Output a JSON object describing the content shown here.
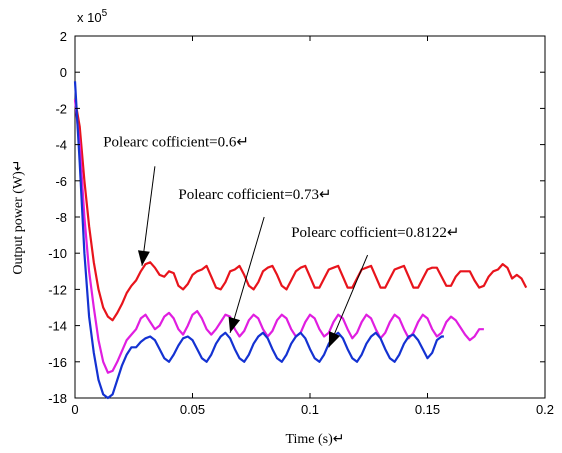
{
  "chart_data": {
    "type": "line",
    "xlabel": "Time (s)↵",
    "ylabel": "Output power (W)↵",
    "exponent_label": "x 10",
    "exponent_power": "5",
    "xlim": [
      0,
      0.2
    ],
    "ylim": [
      -18,
      2
    ],
    "xticks": [
      0,
      0.05,
      0.1,
      0.15,
      0.2
    ],
    "xtick_labels": [
      "0",
      "0.05",
      "0.1",
      "0.15",
      "0.2"
    ],
    "yticks": [
      2,
      0,
      -2,
      -4,
      -6,
      -8,
      -10,
      -12,
      -14,
      -16,
      -18
    ],
    "ytick_labels": [
      "2",
      "0",
      "-2",
      "-4",
      "-6",
      "-8",
      "-10",
      "-12",
      "-14",
      "-16",
      "-18"
    ],
    "grid": false,
    "series": [
      {
        "color": "#e8141c",
        "x_end": 0.192,
        "points": [
          [
            0,
            -1.5
          ],
          [
            0.002,
            -3
          ],
          [
            0.004,
            -6
          ],
          [
            0.006,
            -8.5
          ],
          [
            0.008,
            -10.5
          ],
          [
            0.01,
            -12.0
          ],
          [
            0.012,
            -13.0
          ],
          [
            0.014,
            -13.5
          ],
          [
            0.016,
            -13.7
          ],
          [
            0.018,
            -13.3
          ],
          [
            0.02,
            -12.8
          ],
          [
            0.022,
            -12.2
          ],
          [
            0.024,
            -11.8
          ],
          [
            0.026,
            -11.5
          ],
          [
            0.028,
            -11.0
          ],
          [
            0.03,
            -10.6
          ],
          [
            0.032,
            -10.5
          ],
          [
            0.034,
            -10.8
          ],
          [
            0.036,
            -11.2
          ],
          [
            0.038,
            -11.3
          ],
          [
            0.04,
            -11.0
          ],
          [
            0.042,
            -11.1
          ],
          [
            0.044,
            -11.8
          ],
          [
            0.046,
            -12.0
          ],
          [
            0.048,
            -11.7
          ],
          [
            0.05,
            -11.2
          ],
          [
            0.052,
            -11.0
          ],
          [
            0.054,
            -10.9
          ],
          [
            0.056,
            -10.7
          ],
          [
            0.058,
            -11.3
          ],
          [
            0.06,
            -11.9
          ],
          [
            0.062,
            -12.0
          ],
          [
            0.064,
            -11.6
          ],
          [
            0.066,
            -11.0
          ],
          [
            0.068,
            -10.9
          ],
          [
            0.07,
            -10.7
          ],
          [
            0.072,
            -11.2
          ],
          [
            0.074,
            -11.8
          ],
          [
            0.076,
            -12.0
          ],
          [
            0.078,
            -11.6
          ],
          [
            0.08,
            -11.0
          ],
          [
            0.082,
            -10.8
          ],
          [
            0.084,
            -10.7
          ],
          [
            0.086,
            -11.2
          ],
          [
            0.088,
            -11.8
          ],
          [
            0.09,
            -12.0
          ],
          [
            0.092,
            -11.5
          ],
          [
            0.094,
            -11.0
          ],
          [
            0.096,
            -10.8
          ],
          [
            0.098,
            -10.7
          ],
          [
            0.1,
            -11.3
          ],
          [
            0.102,
            -11.9
          ],
          [
            0.104,
            -11.9
          ],
          [
            0.106,
            -11.4
          ],
          [
            0.108,
            -10.9
          ],
          [
            0.11,
            -10.8
          ],
          [
            0.112,
            -10.7
          ],
          [
            0.114,
            -11.3
          ],
          [
            0.116,
            -11.9
          ],
          [
            0.118,
            -11.9
          ],
          [
            0.12,
            -11.4
          ],
          [
            0.122,
            -10.9
          ],
          [
            0.124,
            -10.8
          ],
          [
            0.126,
            -10.7
          ],
          [
            0.128,
            -11.3
          ],
          [
            0.13,
            -11.9
          ],
          [
            0.132,
            -11.9
          ],
          [
            0.134,
            -11.4
          ],
          [
            0.136,
            -10.9
          ],
          [
            0.138,
            -10.8
          ],
          [
            0.14,
            -10.7
          ],
          [
            0.142,
            -11.3
          ],
          [
            0.144,
            -11.9
          ],
          [
            0.146,
            -11.9
          ],
          [
            0.148,
            -11.4
          ],
          [
            0.15,
            -10.9
          ],
          [
            0.152,
            -10.8
          ],
          [
            0.154,
            -10.8
          ],
          [
            0.156,
            -11.3
          ],
          [
            0.158,
            -11.8
          ],
          [
            0.16,
            -11.8
          ],
          [
            0.162,
            -11.3
          ],
          [
            0.164,
            -11.0
          ],
          [
            0.166,
            -11.0
          ],
          [
            0.168,
            -11.0
          ],
          [
            0.17,
            -11.5
          ],
          [
            0.172,
            -11.9
          ],
          [
            0.174,
            -11.8
          ],
          [
            0.176,
            -11.3
          ],
          [
            0.178,
            -11.0
          ],
          [
            0.18,
            -10.9
          ],
          [
            0.182,
            -10.6
          ],
          [
            0.184,
            -10.8
          ],
          [
            0.186,
            -11.4
          ],
          [
            0.188,
            -11.2
          ],
          [
            0.19,
            -11.4
          ],
          [
            0.192,
            -11.9
          ]
        ]
      },
      {
        "color": "#e01ee0",
        "x_end": 0.174,
        "points": [
          [
            0,
            -1.5
          ],
          [
            0.002,
            -4
          ],
          [
            0.004,
            -8
          ],
          [
            0.006,
            -11
          ],
          [
            0.008,
            -13
          ],
          [
            0.01,
            -14.8
          ],
          [
            0.012,
            -16.0
          ],
          [
            0.014,
            -16.6
          ],
          [
            0.016,
            -16.5
          ],
          [
            0.018,
            -16.0
          ],
          [
            0.02,
            -15.4
          ],
          [
            0.022,
            -14.8
          ],
          [
            0.024,
            -14.5
          ],
          [
            0.026,
            -14.2
          ],
          [
            0.028,
            -13.6
          ],
          [
            0.03,
            -13.4
          ],
          [
            0.032,
            -13.8
          ],
          [
            0.034,
            -14.2
          ],
          [
            0.036,
            -14.0
          ],
          [
            0.038,
            -13.5
          ],
          [
            0.04,
            -13.3
          ],
          [
            0.042,
            -13.6
          ],
          [
            0.044,
            -14.2
          ],
          [
            0.046,
            -14.5
          ],
          [
            0.048,
            -14.0
          ],
          [
            0.05,
            -13.4
          ],
          [
            0.052,
            -13.2
          ],
          [
            0.054,
            -13.6
          ],
          [
            0.056,
            -14.2
          ],
          [
            0.058,
            -14.5
          ],
          [
            0.06,
            -14.2
          ],
          [
            0.062,
            -13.8
          ],
          [
            0.064,
            -13.4
          ],
          [
            0.066,
            -13.5
          ],
          [
            0.068,
            -14.2
          ],
          [
            0.07,
            -14.6
          ],
          [
            0.072,
            -14.3
          ],
          [
            0.074,
            -13.7
          ],
          [
            0.076,
            -13.4
          ],
          [
            0.078,
            -13.6
          ],
          [
            0.08,
            -14.2
          ],
          [
            0.082,
            -14.6
          ],
          [
            0.084,
            -14.3
          ],
          [
            0.086,
            -13.7
          ],
          [
            0.088,
            -13.4
          ],
          [
            0.09,
            -13.6
          ],
          [
            0.092,
            -14.2
          ],
          [
            0.094,
            -14.6
          ],
          [
            0.096,
            -14.4
          ],
          [
            0.098,
            -13.8
          ],
          [
            0.1,
            -13.4
          ],
          [
            0.102,
            -13.6
          ],
          [
            0.104,
            -14.2
          ],
          [
            0.106,
            -14.6
          ],
          [
            0.108,
            -14.4
          ],
          [
            0.11,
            -13.8
          ],
          [
            0.112,
            -13.4
          ],
          [
            0.114,
            -13.6
          ],
          [
            0.116,
            -14.2
          ],
          [
            0.118,
            -14.7
          ],
          [
            0.12,
            -14.4
          ],
          [
            0.122,
            -13.8
          ],
          [
            0.124,
            -13.4
          ],
          [
            0.126,
            -13.6
          ],
          [
            0.128,
            -14.2
          ],
          [
            0.13,
            -14.7
          ],
          [
            0.132,
            -14.4
          ],
          [
            0.134,
            -13.8
          ],
          [
            0.136,
            -13.4
          ],
          [
            0.138,
            -13.6
          ],
          [
            0.14,
            -14.2
          ],
          [
            0.142,
            -14.7
          ],
          [
            0.144,
            -14.4
          ],
          [
            0.146,
            -13.8
          ],
          [
            0.148,
            -13.4
          ],
          [
            0.15,
            -13.6
          ],
          [
            0.152,
            -14.2
          ],
          [
            0.154,
            -14.6
          ],
          [
            0.156,
            -14.4
          ],
          [
            0.158,
            -13.8
          ],
          [
            0.16,
            -13.5
          ],
          [
            0.162,
            -13.7
          ],
          [
            0.164,
            -14.1
          ],
          [
            0.166,
            -14.5
          ],
          [
            0.168,
            -14.8
          ],
          [
            0.17,
            -14.6
          ],
          [
            0.172,
            -14.2
          ],
          [
            0.174,
            -14.2
          ]
        ]
      },
      {
        "color": "#1432d2",
        "x_end": 0.157,
        "points": [
          [
            0,
            -0.5
          ],
          [
            0.002,
            -5
          ],
          [
            0.004,
            -10
          ],
          [
            0.006,
            -13.5
          ],
          [
            0.008,
            -15.5
          ],
          [
            0.01,
            -17.0
          ],
          [
            0.012,
            -17.8
          ],
          [
            0.014,
            -18.0
          ],
          [
            0.016,
            -17.8
          ],
          [
            0.018,
            -17.0
          ],
          [
            0.02,
            -16.2
          ],
          [
            0.022,
            -15.6
          ],
          [
            0.024,
            -15.2
          ],
          [
            0.026,
            -15.2
          ],
          [
            0.028,
            -14.9
          ],
          [
            0.03,
            -14.7
          ],
          [
            0.032,
            -14.6
          ],
          [
            0.034,
            -14.8
          ],
          [
            0.036,
            -15.3
          ],
          [
            0.038,
            -15.8
          ],
          [
            0.04,
            -16.0
          ],
          [
            0.042,
            -15.6
          ],
          [
            0.044,
            -15.1
          ],
          [
            0.046,
            -14.7
          ],
          [
            0.048,
            -14.6
          ],
          [
            0.05,
            -14.8
          ],
          [
            0.052,
            -15.3
          ],
          [
            0.054,
            -15.8
          ],
          [
            0.056,
            -16.0
          ],
          [
            0.058,
            -15.6
          ],
          [
            0.06,
            -15.0
          ],
          [
            0.062,
            -14.6
          ],
          [
            0.064,
            -14.4
          ],
          [
            0.066,
            -14.7
          ],
          [
            0.068,
            -15.3
          ],
          [
            0.07,
            -15.8
          ],
          [
            0.072,
            -16.0
          ],
          [
            0.074,
            -15.6
          ],
          [
            0.076,
            -15.0
          ],
          [
            0.078,
            -14.6
          ],
          [
            0.08,
            -14.4
          ],
          [
            0.082,
            -14.7
          ],
          [
            0.084,
            -15.3
          ],
          [
            0.086,
            -15.8
          ],
          [
            0.088,
            -16.0
          ],
          [
            0.09,
            -15.6
          ],
          [
            0.092,
            -15.0
          ],
          [
            0.094,
            -14.6
          ],
          [
            0.096,
            -14.4
          ],
          [
            0.098,
            -14.7
          ],
          [
            0.1,
            -15.3
          ],
          [
            0.102,
            -15.8
          ],
          [
            0.104,
            -16.0
          ],
          [
            0.106,
            -15.6
          ],
          [
            0.108,
            -15.0
          ],
          [
            0.11,
            -14.6
          ],
          [
            0.112,
            -14.4
          ],
          [
            0.114,
            -14.7
          ],
          [
            0.116,
            -15.3
          ],
          [
            0.118,
            -15.8
          ],
          [
            0.12,
            -16.0
          ],
          [
            0.122,
            -15.6
          ],
          [
            0.124,
            -15.0
          ],
          [
            0.126,
            -14.6
          ],
          [
            0.128,
            -14.4
          ],
          [
            0.13,
            -14.7
          ],
          [
            0.132,
            -15.3
          ],
          [
            0.134,
            -15.8
          ],
          [
            0.136,
            -16.0
          ],
          [
            0.138,
            -15.6
          ],
          [
            0.14,
            -15.0
          ],
          [
            0.142,
            -14.6
          ],
          [
            0.144,
            -14.5
          ],
          [
            0.146,
            -14.8
          ],
          [
            0.148,
            -15.3
          ],
          [
            0.15,
            -15.8
          ],
          [
            0.152,
            -15.5
          ],
          [
            0.154,
            -14.8
          ],
          [
            0.156,
            -14.6
          ],
          [
            0.157,
            -14.6
          ]
        ]
      }
    ],
    "annotations": [
      {
        "text": "Polearc cofficient=0.6↵",
        "text_x": 0.012,
        "text_y": -4.1,
        "arrow_from": [
          0.034,
          -5.2
        ],
        "arrow_to": [
          0.0285,
          -10.7
        ]
      },
      {
        "text": "Polearc cofficient=0.73↵",
        "text_x": 0.044,
        "text_y": -7.0,
        "arrow_from": [
          0.0805,
          -8.0
        ],
        "arrow_to": [
          0.066,
          -14.4
        ]
      },
      {
        "text": "Polearc cofficient=0.8122↵",
        "text_x": 0.092,
        "text_y": -9.1,
        "arrow_from": [
          0.1245,
          -10.1
        ],
        "arrow_to": [
          0.108,
          -15.2
        ]
      }
    ]
  }
}
